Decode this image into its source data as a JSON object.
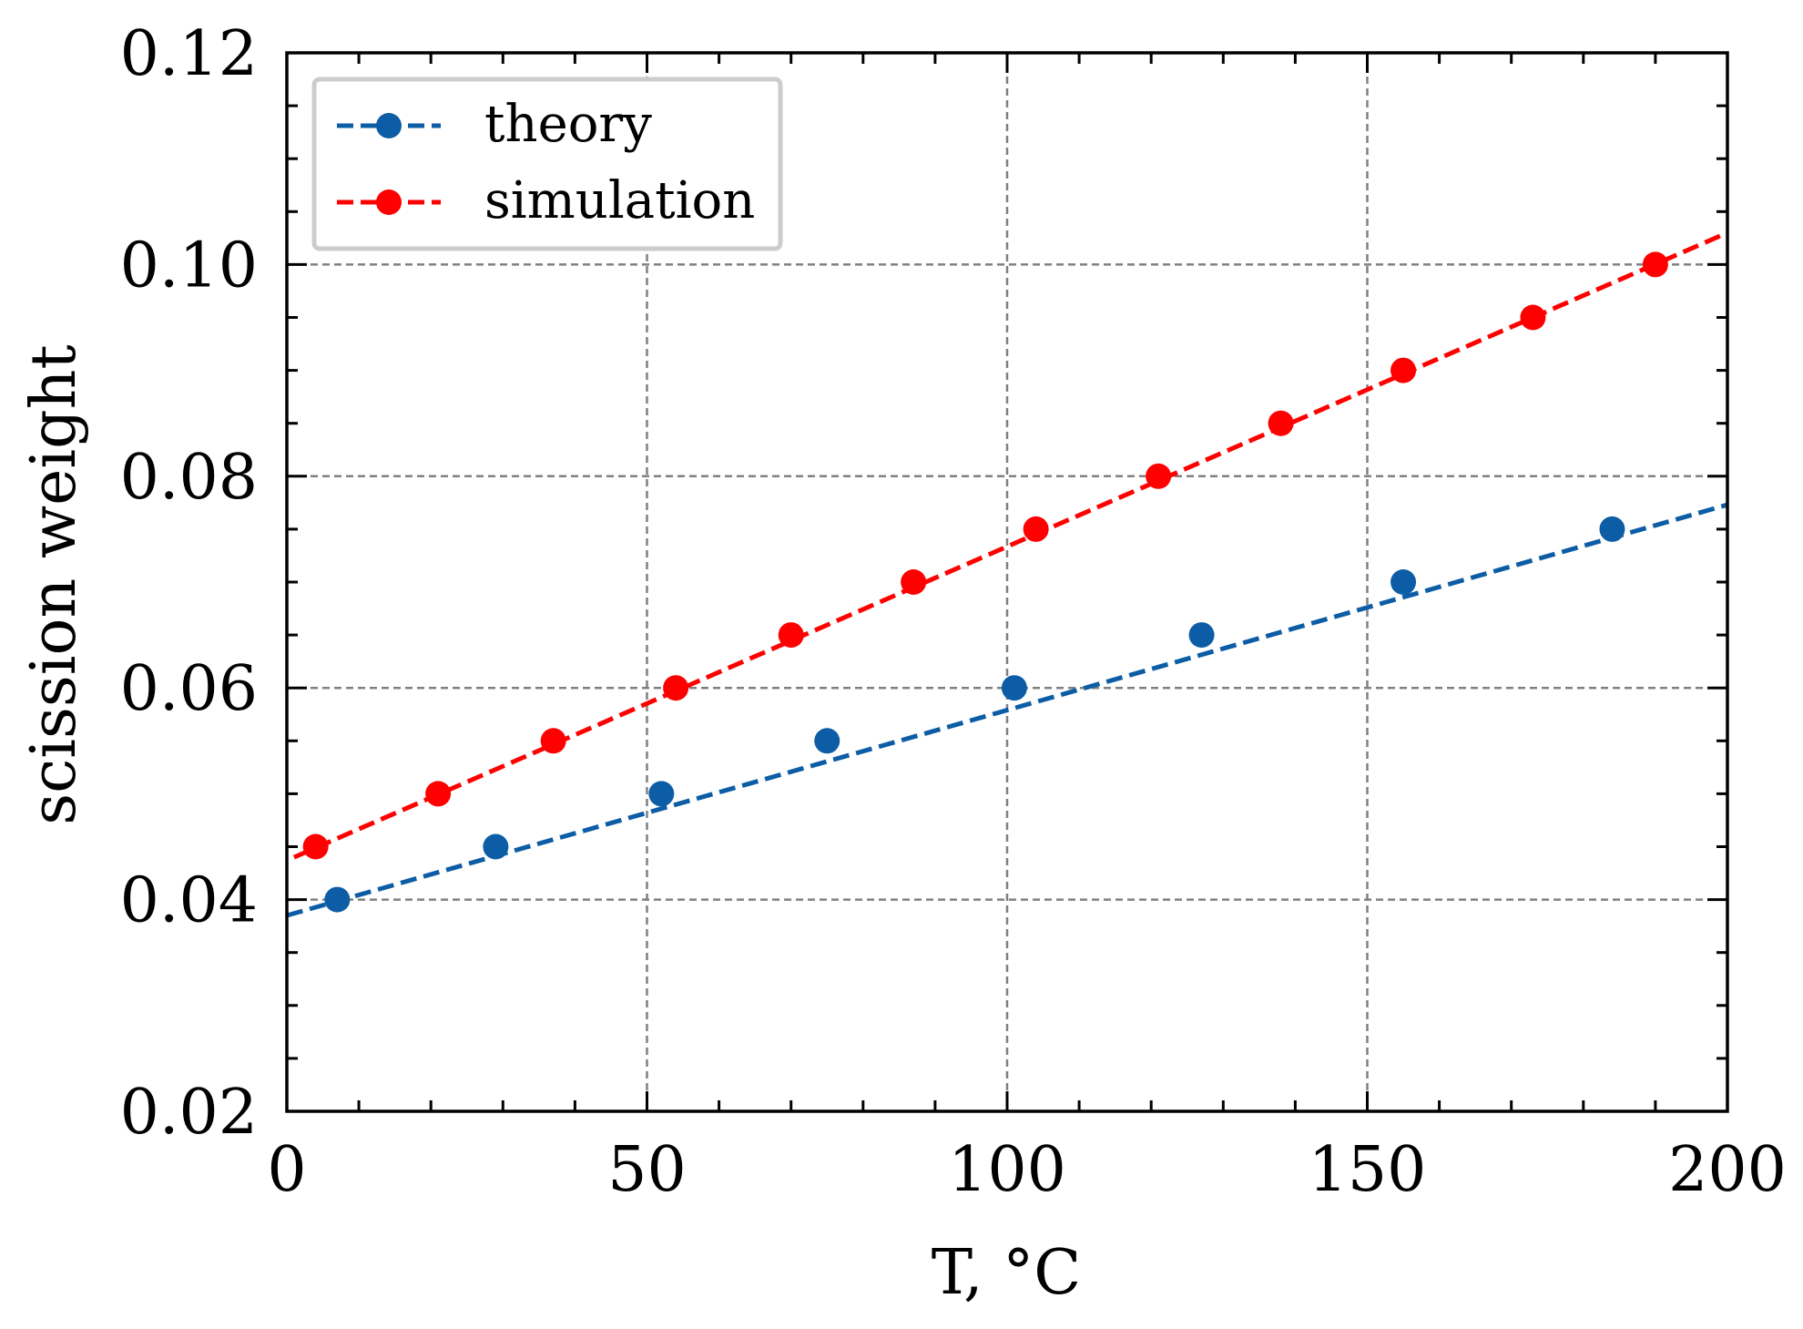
{
  "chart_data": {
    "type": "line",
    "title": "",
    "xlabel": "T, °C",
    "ylabel": "scission weight",
    "xlim": [
      0,
      200
    ],
    "ylim": [
      0.02,
      0.12
    ],
    "xticks": [
      "0",
      "50",
      "100",
      "150",
      "200"
    ],
    "yticks": [
      "0.02",
      "0.04",
      "0.06",
      "0.08",
      "0.10",
      "0.12"
    ],
    "grid": true,
    "legend_position": "top-left",
    "series": [
      {
        "name": "theory",
        "color": "#0C5DA5",
        "marker": "circle",
        "line_style": "dashed",
        "points": [
          [
            7,
            0.04
          ],
          [
            29,
            0.045
          ],
          [
            52,
            0.05
          ],
          [
            75,
            0.055
          ],
          [
            101,
            0.06
          ],
          [
            127,
            0.065
          ],
          [
            155,
            0.07
          ],
          [
            184,
            0.075
          ]
        ],
        "fit": [
          [
            0,
            0.0385
          ],
          [
            200,
            0.0773
          ]
        ]
      },
      {
        "name": "simulation",
        "color": "#FF0000",
        "marker": "circle",
        "line_style": "dashed",
        "points": [
          [
            4,
            0.045
          ],
          [
            21,
            0.05
          ],
          [
            37,
            0.055
          ],
          [
            54,
            0.06
          ],
          [
            70,
            0.065
          ],
          [
            87,
            0.07
          ],
          [
            104,
            0.075
          ],
          [
            121,
            0.08
          ],
          [
            138,
            0.085
          ],
          [
            155,
            0.09
          ],
          [
            173,
            0.095
          ],
          [
            190,
            0.1
          ]
        ],
        "fit": [
          [
            1,
            0.044
          ],
          [
            200,
            0.103
          ]
        ]
      }
    ]
  }
}
